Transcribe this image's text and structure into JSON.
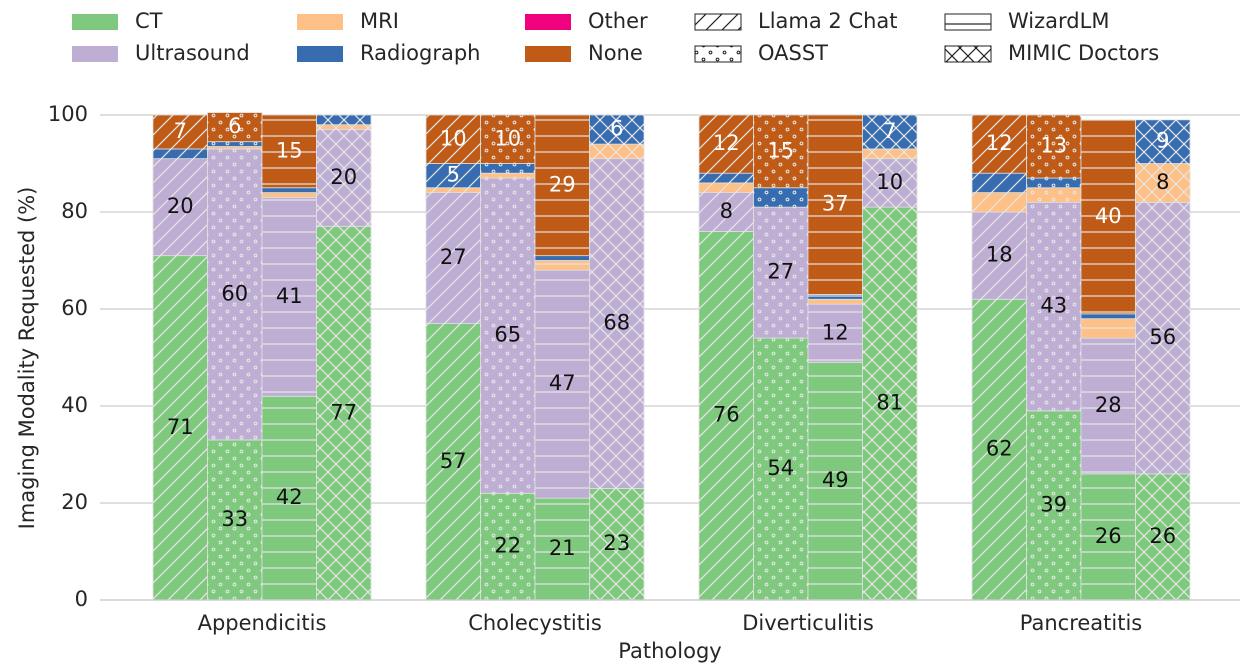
{
  "chart_data": {
    "type": "bar",
    "stacked": true,
    "ylabel": "Imaging Modality Requested (%)",
    "xlabel": "Pathology",
    "categories": [
      "Appendicitis",
      "Cholecystitis",
      "Diverticulitis",
      "Pancreatitis"
    ],
    "groups": [
      {
        "name": "Llama 2 Chat",
        "hatch": "/"
      },
      {
        "name": "OASST",
        "hatch": "."
      },
      {
        "name": "WizardLM",
        "hatch": "-"
      },
      {
        "name": "MIMIC Doctors",
        "hatch": "x"
      }
    ],
    "series": [
      {
        "name": "CT",
        "color": "#7fc97f",
        "values": [
          [
            71,
            57,
            76,
            62
          ],
          [
            33,
            22,
            54,
            39
          ],
          [
            42,
            21,
            49,
            26
          ],
          [
            77,
            23,
            81,
            26
          ]
        ]
      },
      {
        "name": "Ultrasound",
        "color": "#beaed4",
        "values": [
          [
            20,
            27,
            8,
            18
          ],
          [
            60,
            65,
            27,
            43
          ],
          [
            41,
            47,
            12,
            28
          ],
          [
            20,
            68,
            10,
            56
          ]
        ]
      },
      {
        "name": "MRI",
        "color": "#fdc086",
        "values": [
          [
            0,
            1,
            2,
            4
          ],
          [
            0.5,
            1,
            0,
            3
          ],
          [
            1,
            2,
            1,
            4
          ],
          [
            1,
            3,
            2,
            8
          ]
        ]
      },
      {
        "name": "Radiograph",
        "color": "#386cb0",
        "values": [
          [
            2,
            5,
            2,
            4
          ],
          [
            1,
            2,
            4,
            2
          ],
          [
            1,
            1,
            1,
            1
          ],
          [
            2,
            6,
            7,
            9
          ]
        ]
      },
      {
        "name": "Other",
        "color": "#f0027f",
        "values": [
          [
            0,
            0,
            0,
            0
          ],
          [
            0,
            0,
            0,
            0
          ],
          [
            0,
            0,
            0,
            0
          ],
          [
            0,
            0,
            0,
            0
          ]
        ]
      },
      {
        "name": "None",
        "color": "#bf5b17",
        "values": [
          [
            7,
            10,
            12,
            12
          ],
          [
            6,
            10,
            15,
            13
          ],
          [
            15,
            29,
            37,
            40
          ],
          [
            0,
            0,
            0,
            0
          ]
        ]
      }
    ],
    "ylim": [
      0,
      100
    ],
    "yticks": [
      0,
      20,
      40,
      60,
      80,
      100
    ],
    "grid": true
  }
}
